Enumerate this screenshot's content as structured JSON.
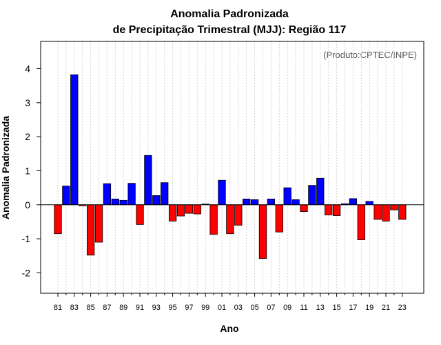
{
  "chart_data": {
    "type": "bar",
    "title": "Anomalia Padronizada",
    "subtitle": "de Precipitação Trimestral (MJJ): Região 117",
    "xlabel": "Ano",
    "ylabel": "Anomalia Padronizada",
    "annotation": "(Produto:CPTEC/INPE)",
    "ylim": [
      -2.6,
      4.8
    ],
    "yticks": [
      -2,
      -1,
      0,
      1,
      2,
      3,
      4
    ],
    "x_tick_labels": [
      "81",
      "83",
      "85",
      "87",
      "89",
      "91",
      "93",
      "95",
      "97",
      "99",
      "01",
      "03",
      "05",
      "07",
      "09",
      "11",
      "13",
      "15",
      "17",
      "19",
      "21",
      "23"
    ],
    "categories": [
      "1981",
      "1982",
      "1983",
      "1984",
      "1985",
      "1986",
      "1987",
      "1988",
      "1989",
      "1990",
      "1991",
      "1992",
      "1993",
      "1994",
      "1995",
      "1996",
      "1997",
      "1998",
      "1999",
      "2000",
      "2001",
      "2002",
      "2003",
      "2004",
      "2005",
      "2006",
      "2007",
      "2008",
      "2009",
      "2010",
      "2011",
      "2012",
      "2013",
      "2014",
      "2015",
      "2016",
      "2017",
      "2018",
      "2019",
      "2020",
      "2021",
      "2022",
      "2023"
    ],
    "values": [
      -0.85,
      0.55,
      3.82,
      -0.03,
      -1.48,
      -1.1,
      0.62,
      0.17,
      0.13,
      0.63,
      -0.58,
      1.45,
      0.27,
      0.65,
      -0.48,
      -0.33,
      -0.25,
      -0.27,
      0.02,
      -0.87,
      0.72,
      -0.85,
      -0.6,
      0.17,
      0.15,
      -1.58,
      0.17,
      -0.8,
      0.5,
      0.15,
      -0.2,
      0.57,
      0.78,
      -0.3,
      -0.32,
      0.03,
      0.18,
      -1.03,
      0.1,
      -0.43,
      -0.48,
      -0.15,
      -0.43
    ],
    "positive_color": "#0000ff",
    "negative_color": "#ff0000",
    "grid": true
  }
}
